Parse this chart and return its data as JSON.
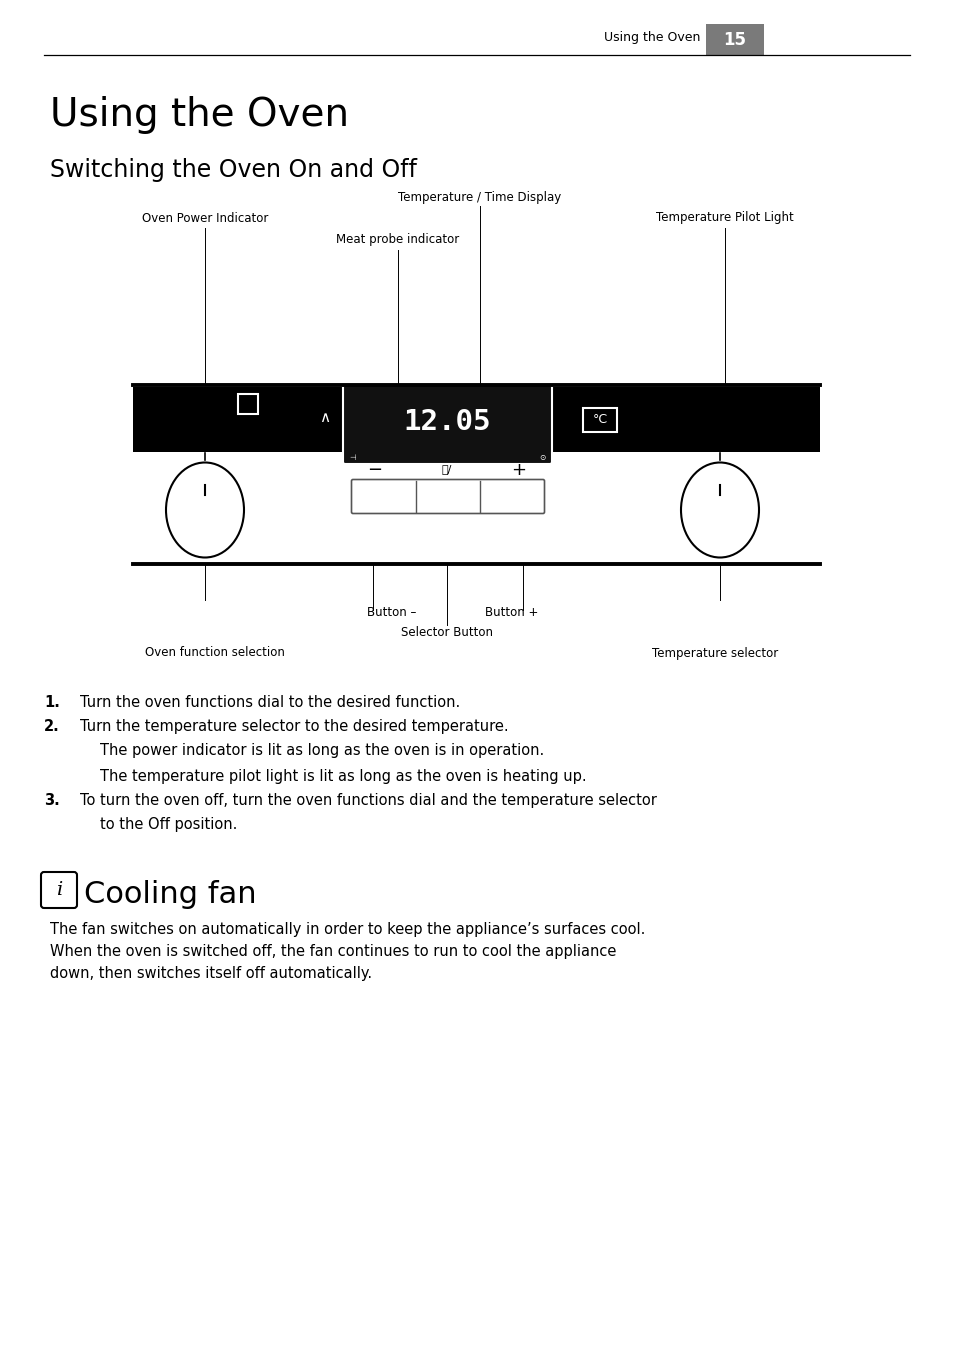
{
  "page_header_text": "Using the Oven",
  "page_number": "15",
  "main_title": "Using the Oven",
  "subtitle": "Switching the Oven On and Off",
  "bg_color": "#ffffff",
  "header_bg_color": "#808080",
  "diagram_labels": {
    "temp_time_display": "Temperature / Time Display",
    "oven_power_indicator": "Oven Power Indicator",
    "temp_pilot_light": "Temperature Pilot Light",
    "meat_probe_indicator": "Meat probe indicator",
    "button_minus": "Button –",
    "button_plus": "Button +",
    "selector_button": "Selector Button",
    "oven_function_selection": "Oven function selection",
    "temperature_selector": "Temperature selector"
  },
  "display_text": "12.05",
  "instructions": [
    {
      "num": "1.",
      "bold": true,
      "text": "Turn the oven functions dial to the desired function.",
      "indent": false
    },
    {
      "num": "2.",
      "bold": true,
      "text": "Turn the temperature selector to the desired temperature.",
      "indent": false
    },
    {
      "num": "",
      "bold": false,
      "text": "The power indicator is lit as long as the oven is in operation.",
      "indent": true
    },
    {
      "num": "",
      "bold": false,
      "text": "The temperature pilot light is lit as long as the oven is heating up.",
      "indent": true
    },
    {
      "num": "3.",
      "bold": true,
      "text": "To turn the oven off, turn the oven functions dial and the temperature selector",
      "indent": false
    },
    {
      "num": "",
      "bold": false,
      "text": "to the Off position.",
      "indent": true
    }
  ],
  "cooling_fan_title": "Cooling fan",
  "cooling_fan_text": "The fan switches on automatically in order to keep the appliance’s surfaces cool.\nWhen the oven is switched off, the fan continues to run to cool the appliance\ndown, then switches itself off automatically."
}
